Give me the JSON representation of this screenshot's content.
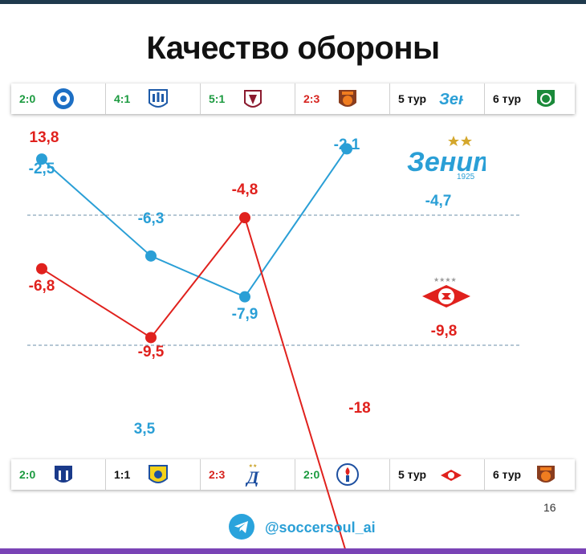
{
  "title": "Качество обороны",
  "footer": {
    "handle": "@soccersoul_ai",
    "page": "16"
  },
  "colors": {
    "zenit": "#2a9fd6",
    "spartak": "#e0211d",
    "win": "#1b9a3f",
    "loss": "#d6231e",
    "grid": "#6b8fa8"
  },
  "top_strip": [
    {
      "score": "2:0",
      "result": "win",
      "icon": "orenburg-logo-icon"
    },
    {
      "score": "4:1",
      "result": "win",
      "icon": "baltika-logo-icon"
    },
    {
      "score": "5:1",
      "result": "win",
      "icon": "rubin-logo-icon"
    },
    {
      "score": "2:3",
      "result": "loss",
      "icon": "ural-logo-icon"
    },
    {
      "tur": "5 тур",
      "icon": "zenit-logo-icon"
    },
    {
      "tur": "6 тур",
      "icon": "akhmat-logo-icon"
    }
  ],
  "bottom_strip": [
    {
      "score": "2:0",
      "result": "win",
      "icon": "pari-nn-logo-icon"
    },
    {
      "score": "1:1",
      "result": "draw",
      "icon": "rostov-logo-icon"
    },
    {
      "score": "2:3",
      "result": "loss",
      "icon": "dinamo-logo-icon"
    },
    {
      "score": "2:0",
      "result": "win",
      "icon": "fakel-logo-icon"
    },
    {
      "tur": "5 тур",
      "icon": "spartak-logo-icon"
    },
    {
      "tur": "6 тур",
      "icon": "ural-logo-icon"
    }
  ],
  "chart_data": {
    "type": "line",
    "categories": [
      "1",
      "2",
      "3",
      "4"
    ],
    "ylim": [
      -20,
      16
    ],
    "series": [
      {
        "team": "zenit",
        "values": [
          -2.5,
          -6.3,
          -7.9,
          -2.1
        ],
        "labels": [
          "-2,5",
          "-6,3",
          "-7,9",
          "-2,1"
        ],
        "average": -4.7,
        "average_label": "-4,7",
        "extra_label": "3,5"
      },
      {
        "team": "spartak",
        "values": [
          -6.8,
          -9.5,
          -4.8,
          -18
        ],
        "labels": [
          "-6,8",
          "-9,5",
          "-4,8",
          "-18"
        ],
        "average": -9.8,
        "average_label": "-9,8",
        "extra_label": "13,8"
      }
    ]
  }
}
